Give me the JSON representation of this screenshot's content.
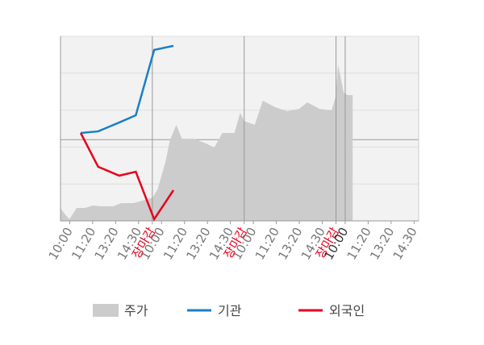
{
  "chart_data": {
    "type": "area-line",
    "xlim": [
      0,
      3.9
    ],
    "ylim": [
      0,
      100
    ],
    "yticks": [
      0,
      20,
      40,
      60,
      80,
      100
    ],
    "y2lim": [
      -44,
      56
    ],
    "y2ticks": [
      0
    ],
    "grid": true,
    "xticks": [
      {
        "value": 0.1,
        "label": "10:00"
      },
      {
        "value": 0.35,
        "label": "11:20"
      },
      {
        "value": 0.6,
        "label": "13:20"
      },
      {
        "value": 0.85,
        "label": "14:30"
      },
      {
        "value": 1.0,
        "label": "장마감",
        "color": "#e8001c"
      },
      {
        "value": 1.1,
        "label": "10:00"
      },
      {
        "value": 1.35,
        "label": "11:20"
      },
      {
        "value": 1.6,
        "label": "13:20"
      },
      {
        "value": 1.85,
        "label": "14:30"
      },
      {
        "value": 2.0,
        "label": "장마감",
        "color": "#e8001c"
      },
      {
        "value": 2.1,
        "label": "10:00"
      },
      {
        "value": 2.35,
        "label": "11:20"
      },
      {
        "value": 2.6,
        "label": "13:20"
      },
      {
        "value": 2.85,
        "label": "14:30"
      },
      {
        "value": 3.0,
        "label": "장마감",
        "color": "#e8001c"
      },
      {
        "value": 3.1,
        "label": "10:00",
        "color": "#333333"
      },
      {
        "value": 3.35,
        "label": "11:20"
      },
      {
        "value": 3.6,
        "label": "13:20"
      },
      {
        "value": 3.85,
        "label": "14:30"
      }
    ],
    "area": {
      "name": "주가",
      "color": "#cccccc",
      "x": [
        0,
        0.044,
        0.097,
        0.176,
        0.264,
        0.352,
        0.441,
        0.573,
        0.661,
        0.793,
        0.925,
        1.004,
        1.057,
        1.145,
        1.189,
        1.26,
        1.322,
        1.454,
        1.586,
        1.674,
        1.762,
        1.894,
        1.956,
        2.0,
        2.115,
        2.203,
        2.335,
        2.467,
        2.599,
        2.687,
        2.819,
        2.952,
        2.996,
        3.022,
        3.084,
        3.128,
        3.181
      ],
      "values": [
        7.0,
        3.9,
        0.9,
        7.0,
        7.0,
        8.3,
        7.9,
        7.9,
        9.6,
        9.6,
        11.4,
        12.7,
        17.0,
        32.3,
        43.2,
        52.0,
        44.5,
        44.5,
        41.9,
        39.7,
        47.6,
        47.6,
        58.5,
        54.1,
        52.0,
        65.1,
        61.6,
        59.4,
        60.7,
        64.2,
        60.7,
        59.8,
        67.2,
        84.7,
        69.4,
        68.1,
        68.1
      ]
    },
    "series": [
      {
        "name": "기관",
        "color": "#1a7fc8",
        "axis": "y2",
        "x": [
          0.22,
          0.41,
          0.64,
          0.82,
          1.02,
          1.23
        ],
        "values": [
          3.6,
          4.5,
          9.3,
          13.2,
          48.6,
          50.8
        ]
      },
      {
        "name": "외국인",
        "color": "#e8001c",
        "axis": "y2",
        "x": [
          0.22,
          0.41,
          0.64,
          0.82,
          1.02,
          1.23
        ],
        "values": [
          3.6,
          -14.7,
          -19.5,
          -17.4,
          -43.1,
          -27.4
        ]
      }
    ]
  }
}
